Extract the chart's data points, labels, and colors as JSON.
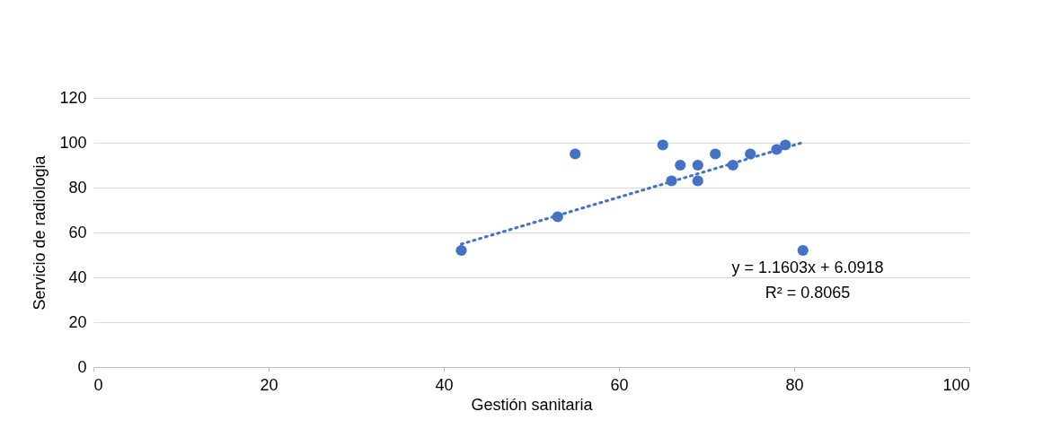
{
  "chart_data": {
    "type": "scatter",
    "xlabel": "Gestión sanitaria",
    "ylabel": "Servicio de radiologia",
    "x": [
      42,
      53,
      55,
      65,
      66,
      67,
      69,
      69,
      71,
      73,
      75,
      78,
      79,
      81
    ],
    "series": [
      {
        "color": "#4472c4",
        "values": [
          52,
          67,
          95,
          99,
          83,
          90,
          90,
          83,
          95,
          90,
          95,
          97,
          99,
          52
        ],
        "marker": "circle"
      },
      {
        "type": "line",
        "x": [
          42,
          81
        ],
        "values": [
          54.8,
          100.1
        ],
        "color": "#4472c4",
        "line_style": "dotted"
      }
    ],
    "xlim": [
      0,
      100
    ],
    "xticks": [
      0,
      20,
      40,
      60,
      80,
      100
    ],
    "ylim": [
      0,
      120
    ],
    "yticks": [
      0,
      20,
      40,
      60,
      80,
      100,
      120
    ],
    "grid": "y",
    "annotations": [
      "y = 1.1603x + 6.0918",
      "R² = 0.8065"
    ]
  }
}
